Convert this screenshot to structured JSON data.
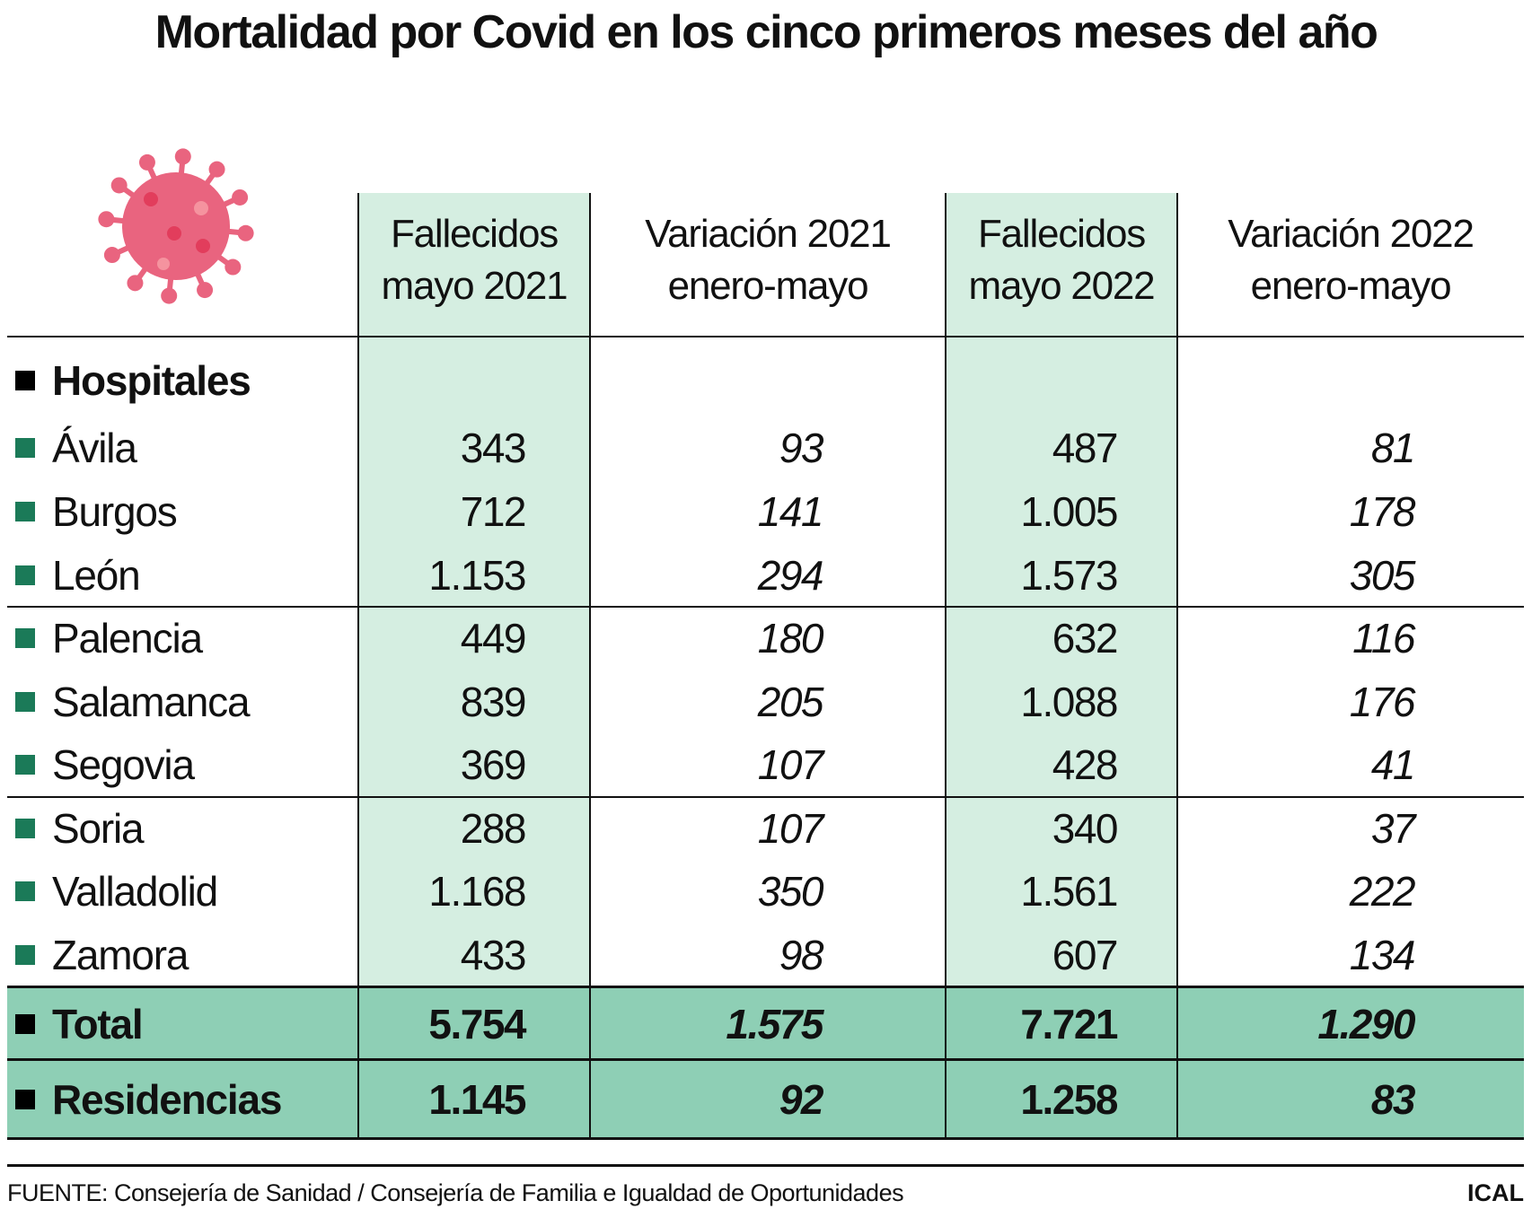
{
  "title": "Mortalidad por Covid en los cinco primeros meses del año",
  "icon": "virus-icon",
  "colors": {
    "column_shade": "#d5eee1",
    "total_band": "#8ecfb5",
    "row_marker": "#1b7a58",
    "virus": "#e9647f"
  },
  "chart_data": {
    "type": "table",
    "columns": [
      {
        "line1": "Fallecidos",
        "line2": "mayo 2021"
      },
      {
        "line1": "Variación 2021",
        "line2": "enero-mayo"
      },
      {
        "line1": "Fallecidos",
        "line2": "mayo 2022"
      },
      {
        "line1": "Variación 2022",
        "line2": "enero-mayo"
      }
    ],
    "section_label": "Hospitales",
    "rows": [
      {
        "label": "Ávila",
        "values": [
          "343",
          "93",
          "487",
          "81"
        ]
      },
      {
        "label": "Burgos",
        "values": [
          "712",
          "141",
          "1.005",
          "178"
        ]
      },
      {
        "label": "León",
        "values": [
          "1.153",
          "294",
          "1.573",
          "305"
        ]
      },
      {
        "label": "Palencia",
        "values": [
          "449",
          "180",
          "632",
          "116"
        ]
      },
      {
        "label": "Salamanca",
        "values": [
          "839",
          "205",
          "1.088",
          "176"
        ]
      },
      {
        "label": "Segovia",
        "values": [
          "369",
          "107",
          "428",
          "41"
        ]
      },
      {
        "label": "Soria",
        "values": [
          "288",
          "107",
          "340",
          "37"
        ]
      },
      {
        "label": "Valladolid",
        "values": [
          "1.168",
          "350",
          "1.561",
          "222"
        ]
      },
      {
        "label": "Zamora",
        "values": [
          "433",
          "98",
          "607",
          "134"
        ]
      }
    ],
    "totals": [
      {
        "label": "Total",
        "values": [
          "5.754",
          "1.575",
          "7.721",
          "1.290"
        ]
      },
      {
        "label": "Residencias",
        "values": [
          "1.145",
          "92",
          "1.258",
          "83"
        ]
      }
    ]
  },
  "footer": {
    "source": "FUENTE: Consejería de Sanidad / Consejería de Familia e Igualdad de Oportunidades",
    "brand": "ICAL"
  }
}
